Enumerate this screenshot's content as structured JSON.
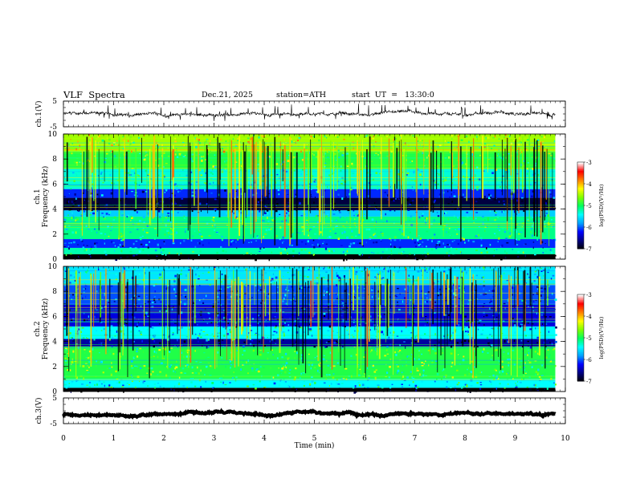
{
  "header": {
    "title": "VLF  Spectra",
    "date": "Dec.21, 2025",
    "station": "station=ATH",
    "start": "start  UT  =   13:30:0"
  },
  "chart_data": [
    {
      "type": "line",
      "name": "ch1-waveform",
      "ylabel": "ch.1(V)",
      "yticks": [
        "5",
        "-5"
      ],
      "ylim": [
        -5,
        5
      ],
      "xlim": [
        0,
        10
      ],
      "data_extent_min": 9.8,
      "baseline": 0,
      "grid": false
    },
    {
      "type": "heatmap",
      "name": "ch1-spectrogram",
      "ylabel": "ch.1\nFrequency  (kHz)",
      "ylabel_lines": [
        "ch.1",
        "Frequency  (kHz)"
      ],
      "yticks": [
        "0",
        "2",
        "4",
        "6",
        "8",
        "10"
      ],
      "ylim": [
        0,
        10
      ],
      "xlim": [
        0,
        10
      ],
      "data_extent_min": 9.8,
      "colorbar": {
        "label": "log(PSD)(V²/Hz)",
        "ticks": [
          "-3",
          "-4",
          "-5",
          "-6",
          "-7"
        ],
        "range": [
          -7,
          -3
        ]
      },
      "bands_khz": [
        {
          "from": 0.0,
          "to": 0.4,
          "level": -7.2
        },
        {
          "from": 0.4,
          "to": 0.9,
          "level": -5.2
        },
        {
          "from": 0.9,
          "to": 1.6,
          "level": -6.1
        },
        {
          "from": 1.6,
          "to": 3.4,
          "level": -5.1
        },
        {
          "from": 3.4,
          "to": 3.9,
          "level": -5.6
        },
        {
          "from": 3.9,
          "to": 4.9,
          "level": -6.8
        },
        {
          "from": 4.9,
          "to": 5.6,
          "level": -6.1
        },
        {
          "from": 5.6,
          "to": 7.2,
          "level": -5.3
        },
        {
          "from": 7.2,
          "to": 8.6,
          "level": -4.9
        },
        {
          "from": 8.6,
          "to": 10.0,
          "level": -4.5
        }
      ]
    },
    {
      "type": "heatmap",
      "name": "ch2-spectrogram",
      "ylabel": "ch.2\nFrequency  (kHz)",
      "ylabel_lines": [
        "ch.2",
        "Frequency  (kHz)"
      ],
      "yticks": [
        "0",
        "2",
        "4",
        "6",
        "8",
        "10"
      ],
      "ylim": [
        0,
        10
      ],
      "xlim": [
        0,
        10
      ],
      "data_extent_min": 9.8,
      "colorbar": {
        "label": "log(PSD)(V²/Hz)",
        "ticks": [
          "-3",
          "-4",
          "-5",
          "-6",
          "-7"
        ],
        "range": [
          -7,
          -3
        ]
      },
      "bands_khz": [
        {
          "from": 0.0,
          "to": 0.3,
          "level": -7.2
        },
        {
          "from": 0.3,
          "to": 1.0,
          "level": -5.4
        },
        {
          "from": 1.0,
          "to": 3.6,
          "level": -4.9
        },
        {
          "from": 3.6,
          "to": 4.2,
          "level": -6.5
        },
        {
          "from": 4.2,
          "to": 5.2,
          "level": -5.4
        },
        {
          "from": 5.2,
          "to": 7.0,
          "level": -6.3
        },
        {
          "from": 7.0,
          "to": 8.5,
          "level": -6.0
        },
        {
          "from": 8.5,
          "to": 10.0,
          "level": -5.5
        }
      ]
    },
    {
      "type": "line",
      "name": "ch3-waveform",
      "ylabel": "ch.3(V)",
      "yticks": [
        "5",
        "-5"
      ],
      "ylim": [
        -5,
        5
      ],
      "xlim": [
        0,
        10
      ],
      "data_extent_min": 9.8,
      "baseline": -1.3,
      "grid": false
    }
  ],
  "xaxis": {
    "label": "Time  (min)",
    "ticks": [
      "0",
      "1",
      "2",
      "3",
      "4",
      "5",
      "6",
      "7",
      "8",
      "9",
      "10"
    ]
  },
  "colors": {
    "colormap": [
      "#000000",
      "#000080",
      "#0000ff",
      "#00a0ff",
      "#00ffff",
      "#00ff60",
      "#80ff00",
      "#ffff00",
      "#ff8000",
      "#ff0000",
      "#ffffff"
    ]
  }
}
